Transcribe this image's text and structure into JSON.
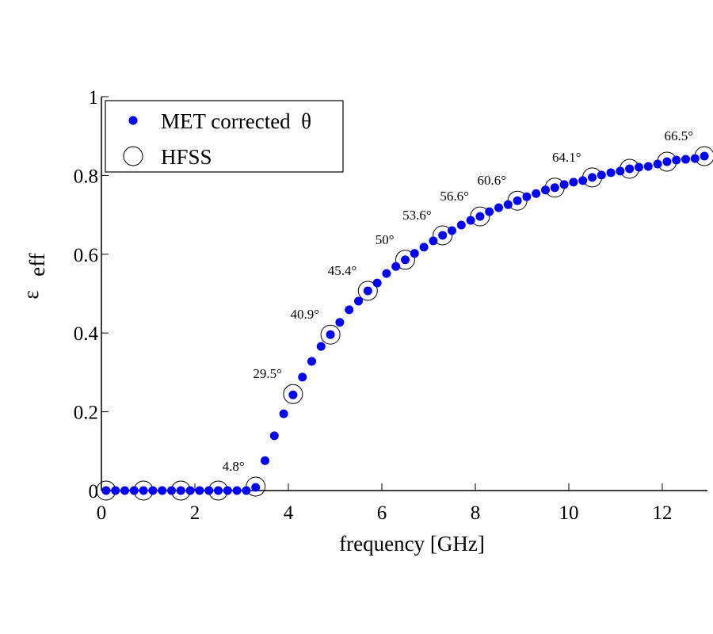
{
  "chart_data": {
    "type": "scatter",
    "title": "",
    "xlabel": "frequency [GHz]",
    "ylabel": "ε",
    "ylabel_subscript": "eff",
    "xlim": [
      0,
      12.9
    ],
    "ylim": [
      0,
      1
    ],
    "xticks": [
      0,
      2,
      4,
      6,
      8,
      10,
      12
    ],
    "xtick_labels": [
      "0",
      "2",
      "4",
      "6",
      "8",
      "10",
      "12"
    ],
    "yticks": [
      0,
      0.2,
      0.4,
      0.6,
      0.8,
      1
    ],
    "ytick_labels": [
      "0",
      "0.2",
      "0.4",
      "0.6",
      "0.8",
      "1"
    ],
    "grid": false,
    "legend_position": "top-left",
    "colors": {
      "met": "#0000ff",
      "hfss": "#000000",
      "axis": "#000000"
    },
    "series": [
      {
        "name": "MET corrected  θ",
        "marker": "filled-dot",
        "x": [
          0.1,
          0.3,
          0.5,
          0.7,
          0.9,
          1.1,
          1.3,
          1.5,
          1.7,
          1.9,
          2.1,
          2.3,
          2.5,
          2.7,
          2.9,
          3.1,
          3.3,
          3.5,
          3.7,
          3.9,
          4.1,
          4.3,
          4.5,
          4.7,
          4.9,
          5.1,
          5.3,
          5.5,
          5.7,
          5.9,
          6.1,
          6.3,
          6.5,
          6.7,
          6.9,
          7.1,
          7.3,
          7.5,
          7.7,
          7.9,
          8.1,
          8.3,
          8.5,
          8.7,
          8.9,
          9.1,
          9.3,
          9.5,
          9.7,
          9.9,
          10.1,
          10.3,
          10.5,
          10.7,
          10.9,
          11.1,
          11.3,
          11.5,
          11.7,
          11.9,
          12.1,
          12.3,
          12.5,
          12.7,
          12.9
        ],
        "y": [
          0.0,
          0.0,
          0.0,
          0.0,
          0.0,
          0.0,
          0.0,
          0.0,
          0.0,
          0.0,
          0.0,
          0.0,
          0.0,
          0.0,
          0.0,
          0.0,
          0.008,
          0.076,
          0.139,
          0.195,
          0.243,
          0.288,
          0.328,
          0.366,
          0.396,
          0.427,
          0.459,
          0.481,
          0.507,
          0.527,
          0.551,
          0.569,
          0.586,
          0.602,
          0.618,
          0.634,
          0.648,
          0.66,
          0.674,
          0.686,
          0.696,
          0.708,
          0.718,
          0.726,
          0.736,
          0.746,
          0.754,
          0.763,
          0.769,
          0.777,
          0.783,
          0.787,
          0.795,
          0.801,
          0.807,
          0.811,
          0.817,
          0.821,
          0.823,
          0.829,
          0.835,
          0.839,
          0.841,
          0.843,
          0.849
        ]
      },
      {
        "name": "HFSS",
        "marker": "open-circle",
        "x": [
          0.1,
          0.9,
          1.7,
          2.5,
          3.3,
          4.1,
          4.9,
          5.7,
          6.5,
          7.3,
          8.1,
          8.9,
          9.7,
          10.5,
          11.3,
          12.1,
          12.9
        ],
        "y": [
          0.0,
          0.0,
          0.0,
          0.0,
          0.01,
          0.245,
          0.396,
          0.507,
          0.586,
          0.648,
          0.696,
          0.736,
          0.769,
          0.795,
          0.817,
          0.835,
          0.849
        ]
      }
    ],
    "annotations": [
      {
        "text": "4.8°",
        "x": 3.3,
        "y": 0.01
      },
      {
        "text": "29.5°",
        "x": 4.1,
        "y": 0.245
      },
      {
        "text": "40.9°",
        "x": 4.9,
        "y": 0.396
      },
      {
        "text": "45.4°",
        "x": 5.7,
        "y": 0.507
      },
      {
        "text": "50°",
        "x": 6.5,
        "y": 0.586
      },
      {
        "text": "53.6°",
        "x": 7.3,
        "y": 0.648
      },
      {
        "text": "56.6°",
        "x": 8.1,
        "y": 0.696
      },
      {
        "text": "60.6°",
        "x": 8.9,
        "y": 0.736
      },
      {
        "text": "64.1°",
        "x": 10.5,
        "y": 0.795
      },
      {
        "text": "66.5°",
        "x": 12.9,
        "y": 0.849
      }
    ],
    "legend": {
      "entries": [
        "MET corrected  θ",
        "HFSS"
      ]
    }
  }
}
